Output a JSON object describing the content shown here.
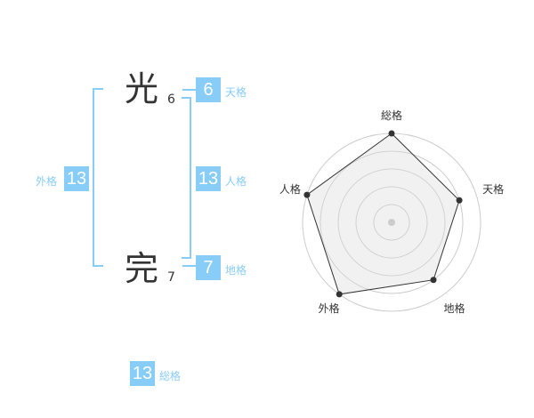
{
  "name": {
    "chars": [
      {
        "char": "光",
        "strokes": "6"
      },
      {
        "char": "完",
        "strokes": "7"
      }
    ]
  },
  "kaku": {
    "tenkaku": {
      "label": "天格",
      "value": "6"
    },
    "jinkaku": {
      "label": "人格",
      "value": "13"
    },
    "chikaku": {
      "label": "地格",
      "value": "7"
    },
    "gaikaku": {
      "label": "外格",
      "value": "13"
    },
    "soukaku": {
      "label": "総格",
      "value": "13"
    }
  },
  "accent_color": "#88ccf8",
  "chart_data": {
    "type": "radar",
    "axes": [
      "総格",
      "天格",
      "地格",
      "外格",
      "人格"
    ],
    "values": [
      5,
      4,
      4,
      5,
      5
    ],
    "rmax": 5,
    "rings": 5
  }
}
